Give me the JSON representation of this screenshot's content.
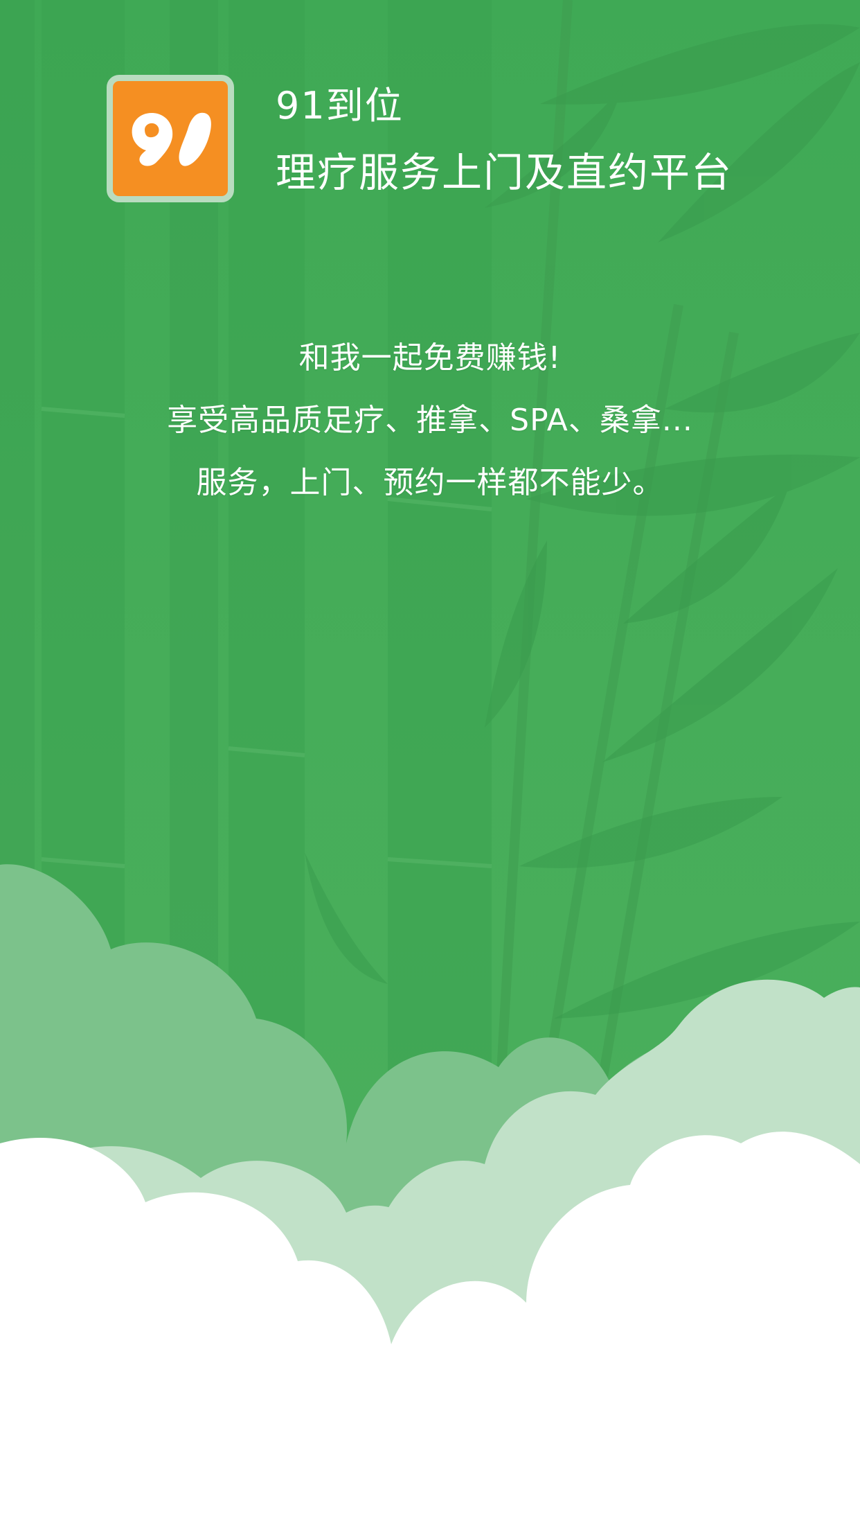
{
  "header": {
    "app_icon_text": "91",
    "app_name": "91到位",
    "tagline": "理疗服务上门及直约平台"
  },
  "promo": {
    "lines": [
      "和我一起免费赚钱!",
      "享受高品质足疗、推拿、SPA、桑拿...",
      "服务，上门、预约一样都不能少。"
    ]
  },
  "colors": {
    "background_green": "#46ad59",
    "icon_orange": "#f58f22",
    "icon_border": "#b9dcc0",
    "cloud_light_green": "#c1e1c8",
    "text": "#ffffff"
  }
}
